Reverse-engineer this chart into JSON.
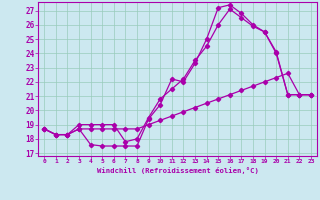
{
  "xlabel": "Windchill (Refroidissement éolien,°C)",
  "bg_color": "#cce8f0",
  "grid_color": "#99ccbb",
  "line_color": "#aa00aa",
  "xlim": [
    -0.5,
    23.5
  ],
  "ylim": [
    16.8,
    27.6
  ],
  "xticks": [
    0,
    1,
    2,
    3,
    4,
    5,
    6,
    7,
    8,
    9,
    10,
    11,
    12,
    13,
    14,
    15,
    16,
    17,
    18,
    19,
    20,
    21,
    22,
    23
  ],
  "yticks": [
    17,
    18,
    19,
    20,
    21,
    22,
    23,
    24,
    25,
    26,
    27
  ],
  "line1_x": [
    0,
    1,
    2,
    3,
    4,
    5,
    6,
    7,
    8,
    9,
    10,
    11,
    12,
    13,
    14,
    15,
    16,
    17,
    18,
    19,
    20,
    21,
    22,
    23
  ],
  "line1_y": [
    18.7,
    18.3,
    18.3,
    18.7,
    17.6,
    17.5,
    17.5,
    17.5,
    17.5,
    19.4,
    20.4,
    22.2,
    22.0,
    23.3,
    25.0,
    27.2,
    27.4,
    26.8,
    26.0,
    25.5,
    24.0,
    21.1,
    21.1,
    21.1
  ],
  "line2_x": [
    0,
    1,
    2,
    3,
    4,
    5,
    6,
    7,
    8,
    9,
    10,
    11,
    12,
    13,
    14,
    15,
    16,
    17,
    18,
    19,
    20,
    21,
    22,
    23
  ],
  "line2_y": [
    18.7,
    18.3,
    18.3,
    19.0,
    19.0,
    19.0,
    19.0,
    17.8,
    18.0,
    19.5,
    20.8,
    21.5,
    22.2,
    23.5,
    24.5,
    26.0,
    27.1,
    26.5,
    25.9,
    25.5,
    24.1,
    21.1,
    21.1,
    21.1
  ],
  "line3_x": [
    0,
    1,
    2,
    3,
    4,
    5,
    6,
    7,
    8,
    9,
    10,
    11,
    12,
    13,
    14,
    15,
    16,
    17,
    18,
    19,
    20,
    21,
    22,
    23
  ],
  "line3_y": [
    18.7,
    18.3,
    18.3,
    18.7,
    18.7,
    18.7,
    18.7,
    18.7,
    18.7,
    19.0,
    19.3,
    19.6,
    19.9,
    20.2,
    20.5,
    20.8,
    21.1,
    21.4,
    21.7,
    22.0,
    22.3,
    22.6,
    21.1,
    21.1
  ]
}
